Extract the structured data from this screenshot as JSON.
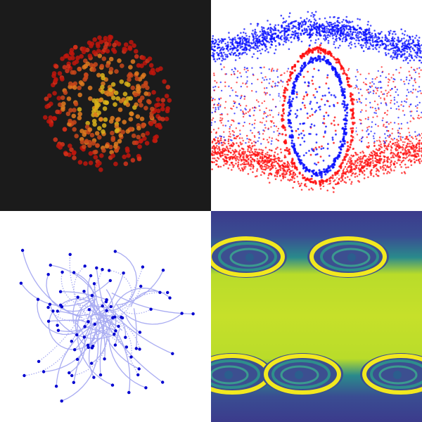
{
  "figure": {
    "panels": [
      {
        "id": "particle-cluster",
        "background": "#1b1b1b",
        "colors": [
          "#c0150c",
          "#e07a1e",
          "#d9b21a"
        ]
      },
      {
        "id": "two-stream-phase-space",
        "background": "#ffffff",
        "colors": [
          "#0a10ff",
          "#ff1010"
        ]
      },
      {
        "id": "particle-trajectories",
        "background": "#ffffff",
        "colors": [
          "#a9acf2",
          "#0000d0"
        ]
      },
      {
        "id": "kelvin-helmholtz-field",
        "colormap": [
          "#3b3b8c",
          "#2e6e8e",
          "#22a884",
          "#bddf26",
          "#f2e81f"
        ]
      }
    ]
  }
}
